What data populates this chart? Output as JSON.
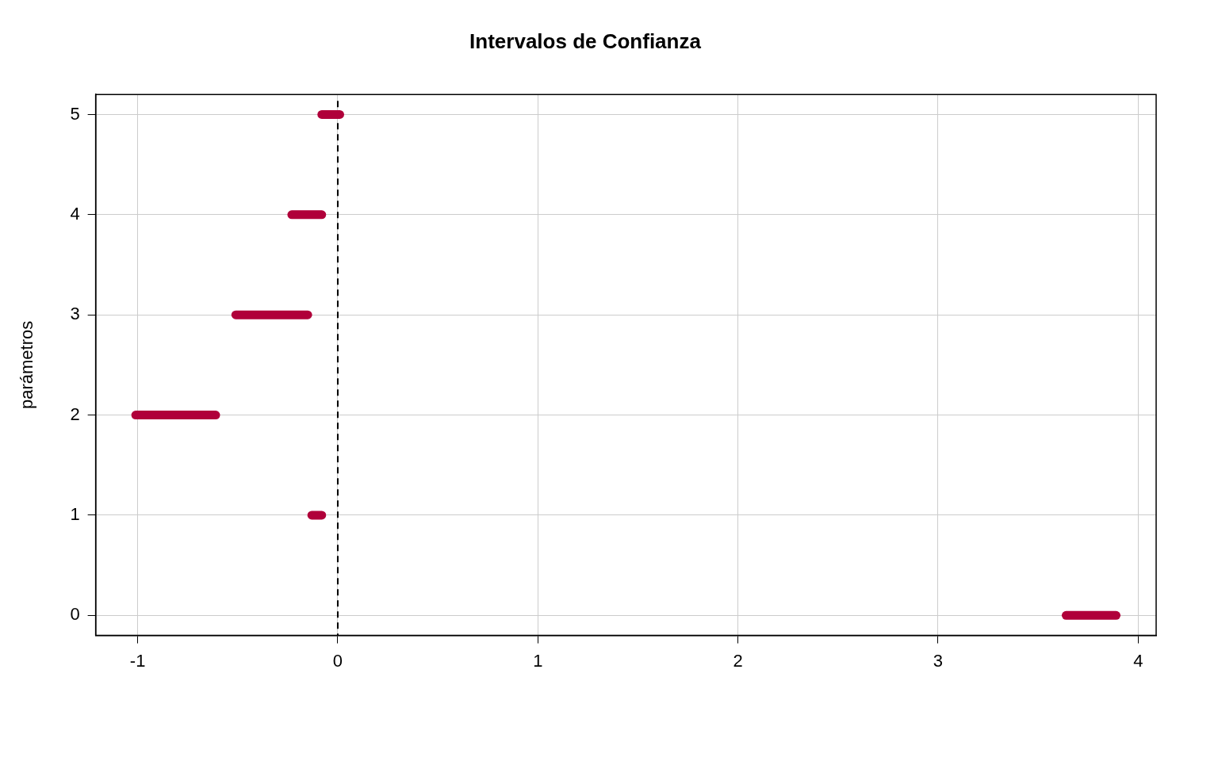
{
  "chart_data": {
    "type": "line",
    "title": "Intervalos de Confianza",
    "ylabel": "parámetros",
    "xlim": [
      -1.21,
      4.09
    ],
    "xticks": [
      -1,
      0,
      1,
      2,
      3,
      4
    ],
    "ylim": [
      -0.2,
      5.2
    ],
    "yticks": [
      0,
      1,
      2,
      3,
      4,
      5
    ],
    "grid": true,
    "legend": false,
    "marker": "none",
    "line_style": "solid",
    "series": [
      {
        "color": "#b0003a",
        "x": [
          3.64,
          3.89
        ],
        "values": [
          0,
          0
        ]
      },
      {
        "color": "#b0003a",
        "x": [
          -0.13,
          -0.08
        ],
        "values": [
          1,
          1
        ]
      },
      {
        "color": "#b0003a",
        "x": [
          -1.01,
          -0.61
        ],
        "values": [
          2,
          2
        ]
      },
      {
        "color": "#b0003a",
        "x": [
          -0.51,
          -0.15
        ],
        "values": [
          3,
          3
        ]
      },
      {
        "color": "#b0003a",
        "x": [
          -0.23,
          -0.08
        ],
        "values": [
          4,
          4
        ]
      },
      {
        "color": "#b0003a",
        "x": [
          -0.08,
          0.01
        ],
        "values": [
          5,
          5
        ]
      }
    ],
    "ref_lines": [
      {
        "axis": "x",
        "value": 0,
        "color": "#000000",
        "line_style": "dashed"
      }
    ]
  }
}
